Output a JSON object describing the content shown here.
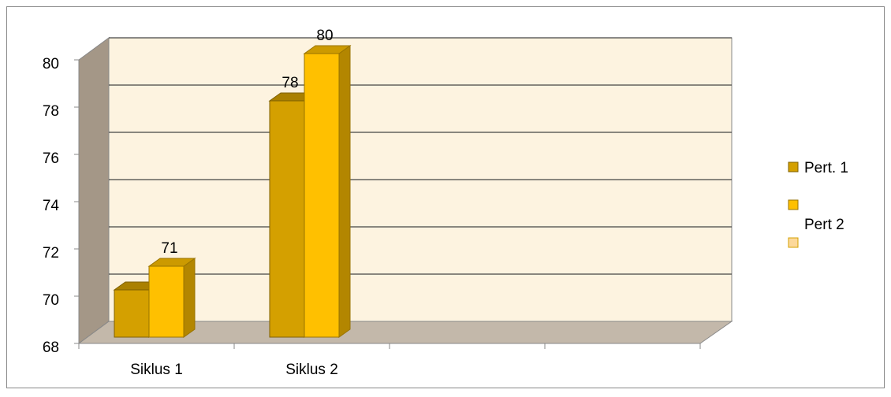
{
  "chart_data": {
    "type": "bar3d",
    "categories": [
      "Siklus 1",
      "Siklus 2",
      null,
      null
    ],
    "series": [
      {
        "name": "Pert. 1",
        "color": "#d4a000",
        "values": [
          70,
          78,
          null,
          null
        ]
      },
      {
        "name": "Pert 2",
        "color": "#ffc000",
        "values": [
          71,
          80,
          null,
          null
        ]
      }
    ],
    "ylim": [
      68,
      80
    ],
    "yticks": [
      68,
      70,
      72,
      74,
      76,
      78,
      80
    ],
    "grid": true,
    "legend": "right"
  }
}
